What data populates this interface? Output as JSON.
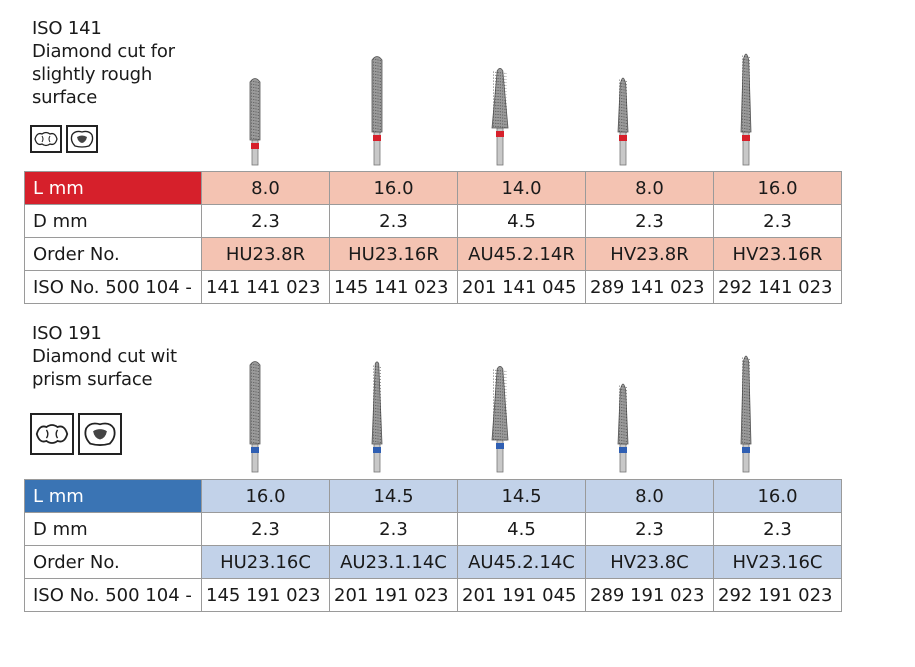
{
  "sections": [
    {
      "heading": [
        "ISO 141",
        "Diamond cut for",
        "slightly rough",
        "surface"
      ],
      "band_color": "#d6202b",
      "tint_color": "#f4c3b2",
      "icons": [
        "tooth-cross-section-icon",
        "molar-occlusal-icon"
      ],
      "labels": {
        "lmm": "L mm",
        "dmm": "D mm",
        "order": "Order No.",
        "iso": "ISO No. 500 104 -"
      },
      "items": [
        {
          "lmm": "8.0",
          "dmm": "2.3",
          "order": "HU23.8R",
          "iso": "141 141 023",
          "shape": "cylinder-round",
          "ring_color": "#d6202b"
        },
        {
          "lmm": "16.0",
          "dmm": "2.3",
          "order": "HU23.16R",
          "iso": "145 141 023",
          "shape": "cylinder-round",
          "ring_color": "#d6202b"
        },
        {
          "lmm": "14.0",
          "dmm": "4.5",
          "order": "AU45.2.14R",
          "iso": "201 141 045",
          "shape": "tapered-round",
          "ring_color": "#d6202b"
        },
        {
          "lmm": "8.0",
          "dmm": "2.3",
          "order": "HV23.8R",
          "iso": "289 141 023",
          "shape": "torpedo",
          "ring_color": "#d6202b"
        },
        {
          "lmm": "16.0",
          "dmm": "2.3",
          "order": "HV23.16R",
          "iso": "292 141 023",
          "shape": "torpedo",
          "ring_color": "#d6202b"
        }
      ]
    },
    {
      "heading": [
        "ISO 191",
        "Diamond cut wit",
        "prism surface"
      ],
      "band_color": "#3a74b4",
      "tint_color": "#c2d2e9",
      "icons": [
        "tooth-cross-section-icon",
        "molar-occlusal-icon"
      ],
      "labels": {
        "lmm": "L mm",
        "dmm": "D mm",
        "order": "Order No.",
        "iso": "ISO No. 500 104 -"
      },
      "items": [
        {
          "lmm": "16.0",
          "dmm": "2.3",
          "order": "HU23.16C",
          "iso": "145 191 023",
          "shape": "cylinder-round",
          "ring_color": "#2f5fb3"
        },
        {
          "lmm": "14.5",
          "dmm": "2.3",
          "order": "AU23.1.14C",
          "iso": "201 191 023",
          "shape": "tapered-round",
          "ring_color": "#2f5fb3"
        },
        {
          "lmm": "14.5",
          "dmm": "4.5",
          "order": "AU45.2.14C",
          "iso": "201 191 045",
          "shape": "tapered-round",
          "ring_color": "#2f5fb3"
        },
        {
          "lmm": "8.0",
          "dmm": "2.3",
          "order": "HV23.8C",
          "iso": "289 191 023",
          "shape": "torpedo",
          "ring_color": "#2f5fb3"
        },
        {
          "lmm": "16.0",
          "dmm": "2.3",
          "order": "HV23.16C",
          "iso": "292 191 023",
          "shape": "torpedo",
          "ring_color": "#2f5fb3"
        }
      ]
    }
  ]
}
